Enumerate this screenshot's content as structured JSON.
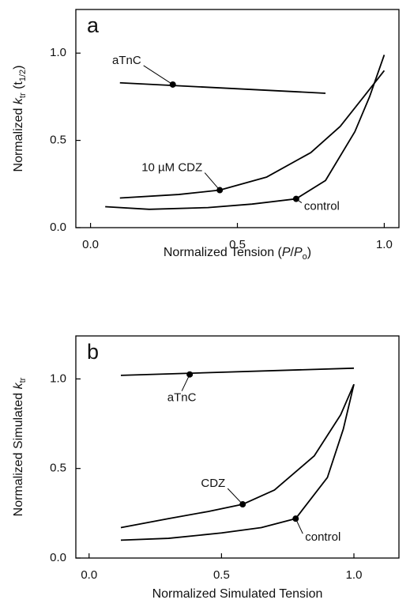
{
  "chart_data": [
    {
      "type": "line",
      "panel_label": "a",
      "xlabel": [
        {
          "text": "Normalized Tension ("
        },
        {
          "text": "P",
          "style": "italic"
        },
        {
          "text": "/"
        },
        {
          "text": "P",
          "style": "italic"
        },
        {
          "text": "o",
          "style": "sub"
        },
        {
          "text": ")"
        }
      ],
      "ylabel": [
        {
          "text": "Normalized "
        },
        {
          "text": "k",
          "style": "italic"
        },
        {
          "text": "tr",
          "style": "sub"
        },
        {
          "text": " (t"
        },
        {
          "text": "1/2",
          "style": "sub"
        },
        {
          "text": ")"
        }
      ],
      "xlim": [
        -0.05,
        1.05
      ],
      "ylim": [
        0,
        1.25
      ],
      "xticks": [
        {
          "value": 0,
          "label": "0.0"
        },
        {
          "value": 0.5,
          "label": "0.5"
        },
        {
          "value": 1,
          "label": "1.0"
        }
      ],
      "yticks": [
        {
          "value": 0,
          "label": "0.0"
        },
        {
          "value": 0.5,
          "label": "0.5"
        },
        {
          "value": 1,
          "label": "1.0"
        }
      ],
      "color": "#000000",
      "series": [
        {
          "name": "aTnC",
          "x": [
            0.1,
            0.8
          ],
          "values": [
            0.83,
            0.77
          ],
          "dot": [
            0.28,
            0.82
          ]
        },
        {
          "name": "10 µM CDZ",
          "x": [
            0.1,
            0.3,
            0.44,
            0.6,
            0.75,
            0.85,
            0.93,
            1.0
          ],
          "values": [
            0.17,
            0.19,
            0.215,
            0.29,
            0.43,
            0.58,
            0.75,
            0.9
          ],
          "dot": [
            0.44,
            0.215
          ]
        },
        {
          "name": "control",
          "x": [
            0.05,
            0.2,
            0.4,
            0.55,
            0.7,
            0.8,
            0.9,
            0.95,
            1.0
          ],
          "values": [
            0.12,
            0.105,
            0.115,
            0.135,
            0.165,
            0.27,
            0.55,
            0.75,
            0.99
          ],
          "dot": [
            0.7,
            0.165
          ]
        }
      ]
    },
    {
      "type": "line",
      "panel_label": "b",
      "xlabel": [
        {
          "text": "Normalized Simulated Tension"
        }
      ],
      "ylabel": [
        {
          "text": "Normalized Simulated "
        },
        {
          "text": "k",
          "style": "italic"
        },
        {
          "text": "tr",
          "style": "sub"
        }
      ],
      "xlim": [
        -0.05,
        1.17
      ],
      "ylim": [
        0,
        1.24
      ],
      "xticks": [
        {
          "value": 0,
          "label": "0.0"
        },
        {
          "value": 0.5,
          "label": "0.5"
        },
        {
          "value": 1,
          "label": "1.0"
        }
      ],
      "yticks": [
        {
          "value": 0,
          "label": "0.0"
        },
        {
          "value": 0.5,
          "label": "0.5"
        },
        {
          "value": 1,
          "label": "1.0"
        }
      ],
      "color": "#000000",
      "series": [
        {
          "name": "aTnC",
          "x": [
            0.12,
            1.0
          ],
          "values": [
            1.02,
            1.06
          ],
          "dot": [
            0.38,
            1.025
          ]
        },
        {
          "name": "CDZ",
          "x": [
            0.12,
            0.3,
            0.45,
            0.58,
            0.7,
            0.85,
            0.95,
            1.0
          ],
          "values": [
            0.17,
            0.22,
            0.26,
            0.3,
            0.38,
            0.57,
            0.8,
            0.97
          ],
          "dot": [
            0.58,
            0.3
          ]
        },
        {
          "name": "control",
          "x": [
            0.12,
            0.3,
            0.5,
            0.65,
            0.78,
            0.9,
            0.96,
            1.0
          ],
          "values": [
            0.1,
            0.11,
            0.14,
            0.17,
            0.22,
            0.45,
            0.72,
            0.97
          ],
          "dot": [
            0.78,
            0.22
          ]
        }
      ]
    }
  ]
}
